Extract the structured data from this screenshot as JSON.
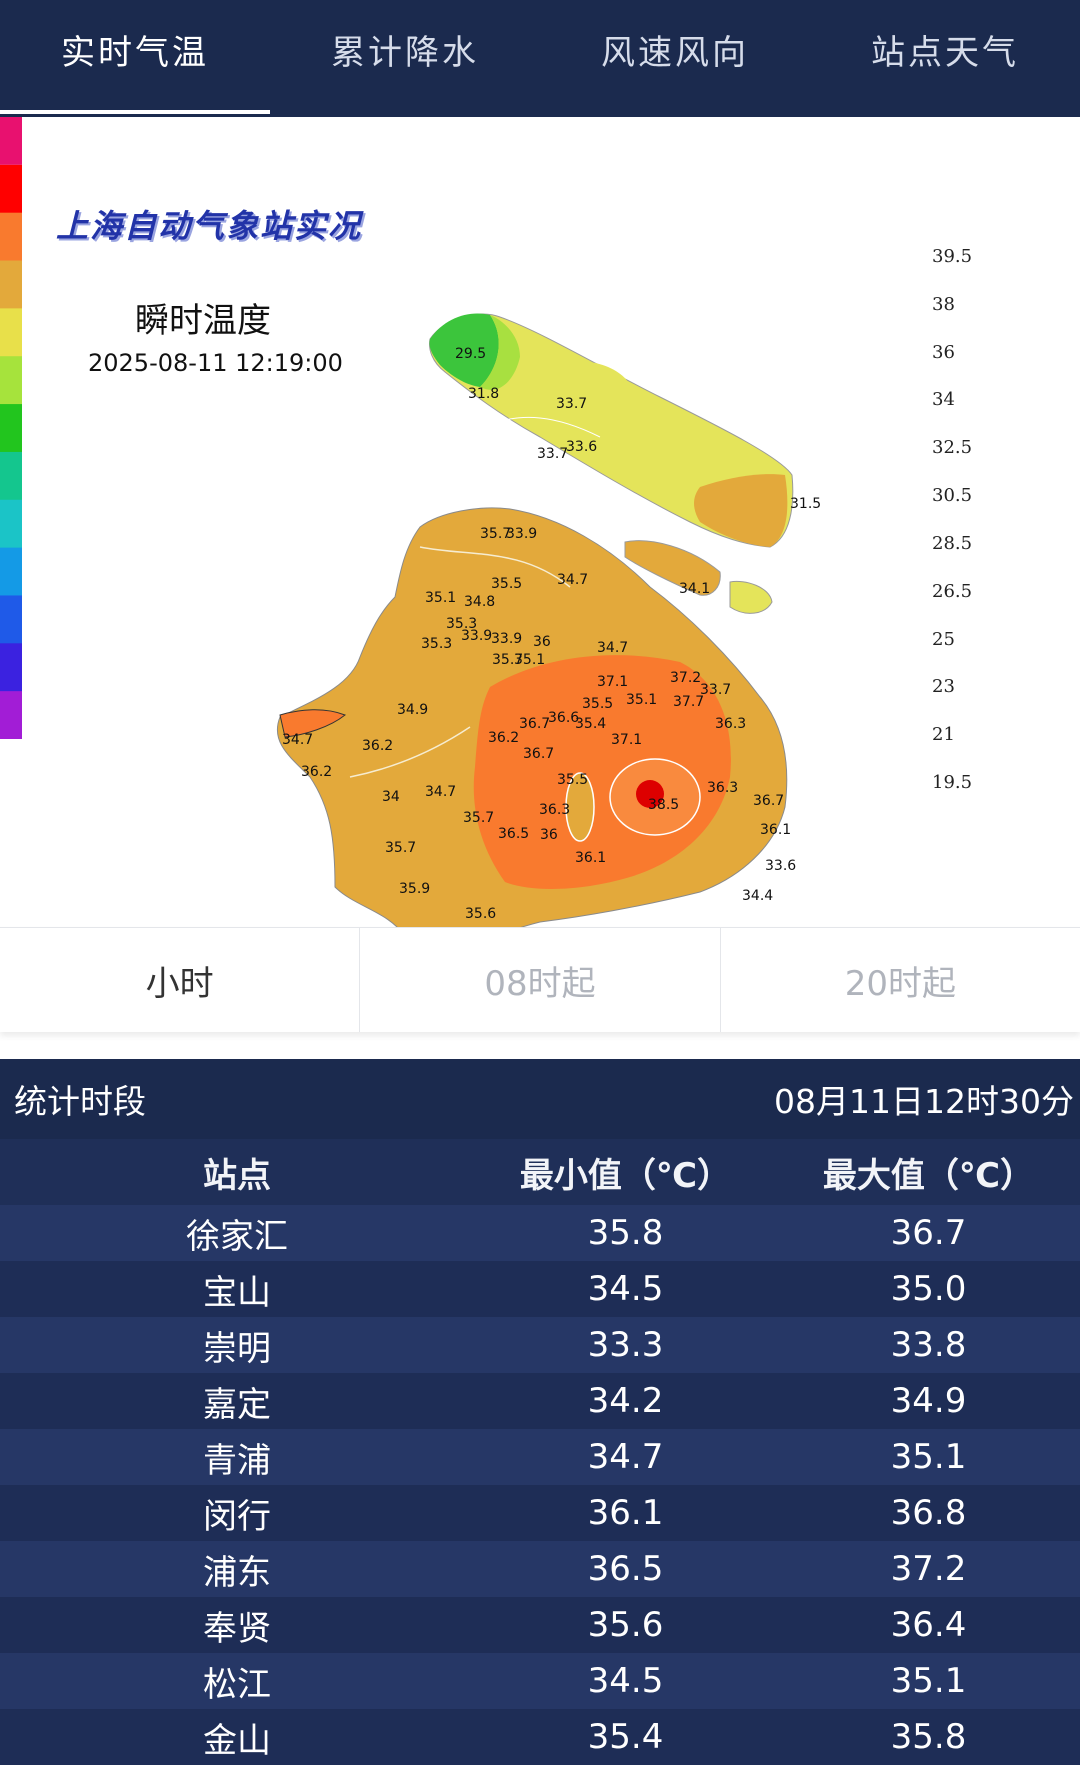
{
  "tabs": [
    "实时气温",
    "累计降水",
    "风速风向",
    "站点天气"
  ],
  "map": {
    "title": "上海自动气象站实况",
    "subtitle": "瞬时温度",
    "datetime": "2025-08-11 12:19:00",
    "legend": [
      {
        "label": "39.5",
        "color": "#ff0000"
      },
      {
        "label": "38",
        "color": "#f97a2e"
      },
      {
        "label": "36",
        "color": "#e3a93b"
      },
      {
        "label": "34",
        "color": "#e8e04a"
      },
      {
        "label": "32.5",
        "color": "#a6e33c"
      },
      {
        "label": "30.5",
        "color": "#22c51e"
      },
      {
        "label": "28.5",
        "color": "#14c68e"
      },
      {
        "label": "26.5",
        "color": "#1bc4c7"
      },
      {
        "label": "25",
        "color": "#149ae6"
      },
      {
        "label": "23",
        "color": "#1f5ae8"
      },
      {
        "label": "21",
        "color": "#3b22e0"
      },
      {
        "label": "19.5",
        "color": "#8a16d9"
      }
    ],
    "legend_top_color": "#e8116f",
    "legend_bottom_color": "#a21dd6",
    "stations": [
      "29.5",
      "31.8",
      "33.7",
      "33.7",
      "33.6",
      "31.5",
      "34.1",
      "35.7",
      "33.9",
      "35.5",
      "34.7",
      "35.1",
      "34.8",
      "35.3",
      "33.9",
      "33.9",
      "36",
      "35.3",
      "35.7",
      "35.1",
      "34.7",
      "37.2",
      "37.1",
      "35.1",
      "33.7",
      "37.7",
      "35.5",
      "36.3",
      "34.9",
      "36.7",
      "36.6",
      "35.4",
      "36.2",
      "37.1",
      "34.7",
      "36.2",
      "36.7",
      "36.2",
      "35.5",
      "36.3",
      "38.5",
      "34",
      "34.7",
      "35.7",
      "36.3",
      "36.5",
      "36",
      "36.7",
      "36.1",
      "35.7",
      "36.1",
      "33.6",
      "35.9",
      "34.4",
      "35.6"
    ]
  },
  "range": {
    "items": [
      "小时",
      "08时起",
      "20时起"
    ],
    "active": 0
  },
  "stats": {
    "label": "统计时段",
    "period": "08月11日12时30分",
    "columns": [
      "站点",
      "最小值（℃）",
      "最大值（℃）"
    ],
    "rows": [
      [
        "徐家汇",
        "35.8",
        "36.7"
      ],
      [
        "宝山",
        "34.5",
        "35.0"
      ],
      [
        "崇明",
        "33.3",
        "33.8"
      ],
      [
        "嘉定",
        "34.2",
        "34.9"
      ],
      [
        "青浦",
        "34.7",
        "35.1"
      ],
      [
        "闵行",
        "36.1",
        "36.8"
      ],
      [
        "浦东",
        "36.5",
        "37.2"
      ],
      [
        "奉贤",
        "35.6",
        "36.4"
      ],
      [
        "松江",
        "34.5",
        "35.1"
      ],
      [
        "金山",
        "35.4",
        "35.8"
      ]
    ]
  }
}
